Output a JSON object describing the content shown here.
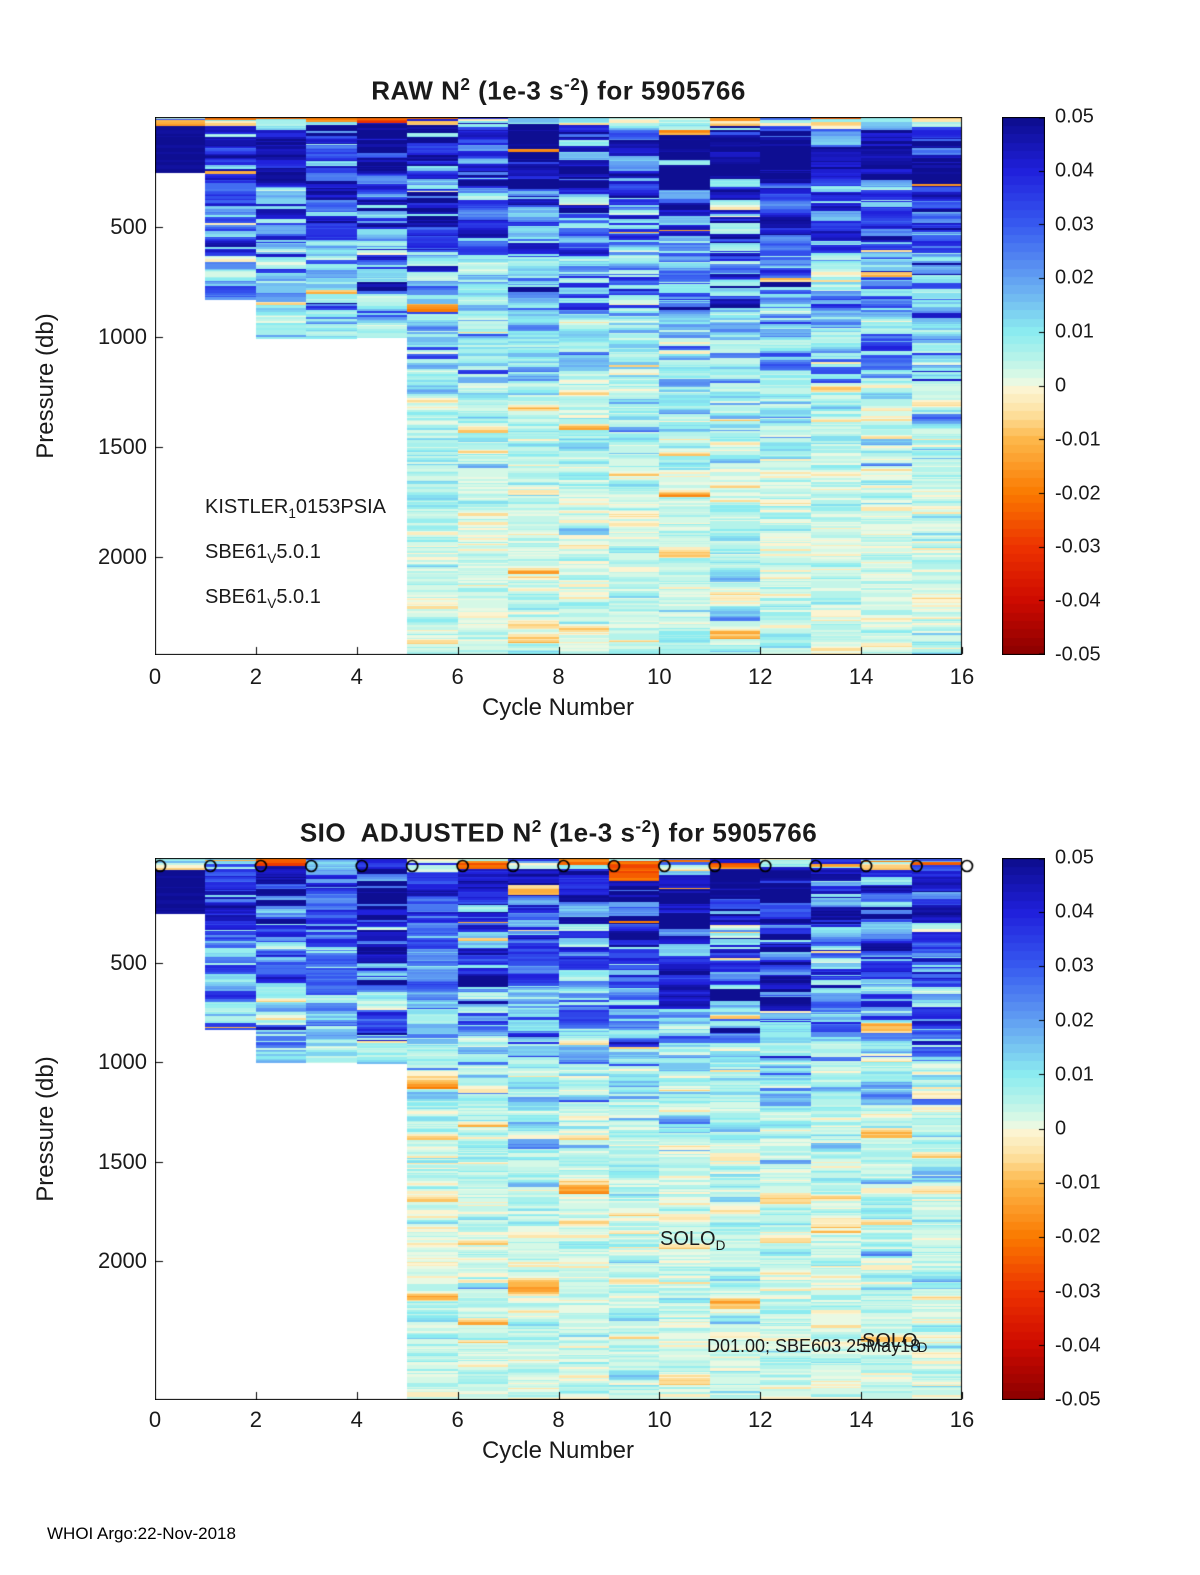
{
  "figure": {
    "footer": "WHOI Argo:22-Nov-2018"
  },
  "panels": [
    {
      "id": "raw",
      "title": {
        "t1": "RAW N",
        "sup1": "2",
        "t2": " (1e-3 s",
        "sup2": "-2",
        "t3": ") for 5905766"
      },
      "xlabel": "Cycle Number",
      "ylabel": "Pressure (db)",
      "xtick_labels": [
        "0",
        "2",
        "4",
        "6",
        "8",
        "10",
        "12",
        "14",
        "16"
      ],
      "ytick_labels": [
        "500",
        "1000",
        "1500",
        "2000"
      ],
      "colorbar_tick_labels": [
        "0.05",
        "0.04",
        "0.03",
        "0.02",
        "0.01",
        "0",
        "-0.01",
        "-0.02",
        "-0.03",
        "-0.04",
        "-0.05"
      ],
      "annotations": [
        {
          "t": "KISTLER",
          "sub": "1",
          "t2": "0153PSIA"
        },
        {
          "t": "SBE61",
          "sub": "V",
          "t2": "5.0.1"
        },
        {
          "t": "SBE61",
          "sub": "V",
          "t2": "5.0.1"
        }
      ]
    },
    {
      "id": "sio-adjusted",
      "title": {
        "t1": "SIO  ADJUSTED N",
        "sup1": "2",
        "t2": " (1e-3 s",
        "sup2": "-2",
        "t3": ") for 5905766"
      },
      "xlabel": "Cycle Number",
      "ylabel": "Pressure (db)",
      "xtick_labels": [
        "0",
        "2",
        "4",
        "6",
        "8",
        "10",
        "12",
        "14",
        "16"
      ],
      "ytick_labels": [
        "500",
        "1000",
        "1500",
        "2000"
      ],
      "colorbar_tick_labels": [
        "0.05",
        "0.04",
        "0.03",
        "0.02",
        "0.01",
        "0",
        "-0.01",
        "-0.02",
        "-0.03",
        "-0.04",
        "-0.05"
      ],
      "annotations": [
        {
          "t": "SOLO",
          "sub": "D"
        },
        {
          "t": "D01.00; SBE603 25May18"
        },
        {
          "t": "SOLO",
          "sub": "D"
        }
      ]
    }
  ],
  "chart_data": [
    {
      "type": "heatmap",
      "title": "RAW N^2 (1e-3 s^-2) for 5905766",
      "xlabel": "Cycle Number",
      "ylabel": "Pressure (db)",
      "float_id": "5905766",
      "value_units": "1e-3 s^-2",
      "xlim": [
        0,
        16
      ],
      "xticks": [
        0,
        2,
        4,
        6,
        8,
        10,
        12,
        14,
        16
      ],
      "ylim_db": [
        0,
        2445
      ],
      "yticks_db": [
        500,
        1000,
        1500,
        2000
      ],
      "y_axis_reversed": true,
      "grid": false,
      "colorbar_range": [
        -0.05,
        0.05
      ],
      "colorbar_ticks": [
        0.05,
        0.04,
        0.03,
        0.02,
        0.01,
        0,
        -0.01,
        -0.02,
        -0.03,
        -0.04,
        -0.05
      ],
      "colorbar_position": "right",
      "n_cycle_columns": 16,
      "cycle_max_pressure_db": [
        250,
        830,
        1000,
        1005,
        1000,
        2445,
        2445,
        2445,
        2445,
        2445,
        2445,
        2445,
        2445,
        2445,
        2445,
        2445
      ],
      "surface_markers": null,
      "seed": 20181122,
      "solid_navy_cap": {
        "column": 0,
        "from_db": 35,
        "to_db": 250,
        "value": 0.05
      },
      "depth_value_bands": [
        {
          "max_db": 6,
          "choices": [
            [
              0.45,
              -0.03,
              -0.001
            ],
            [
              0.3,
              -0.001,
              0.006
            ],
            [
              0.25,
              0.005,
              0.045
            ]
          ]
        },
        {
          "max_db": 28,
          "choices": [
            [
              0.55,
              0.003,
              0.012
            ],
            [
              0.2,
              -0.012,
              -0.001
            ],
            [
              0.25,
              0.03,
              0.05
            ]
          ]
        },
        {
          "max_db": 300,
          "choices": [
            [
              0.68,
              0.04,
              0.055
            ],
            [
              0.2,
              0.02,
              0.04
            ],
            [
              0.1,
              0.006,
              0.02
            ],
            [
              0.02,
              -0.02,
              -0.001
            ]
          ]
        },
        {
          "max_db": 600,
          "choices": [
            [
              0.45,
              0.033,
              0.05
            ],
            [
              0.33,
              0.015,
              0.033
            ],
            [
              0.2,
              0.006,
              0.015
            ],
            [
              0.02,
              -0.015,
              -0.001
            ]
          ]
        },
        {
          "max_db": 900,
          "choices": [
            [
              0.22,
              0.028,
              0.05
            ],
            [
              0.36,
              0.012,
              0.028
            ],
            [
              0.4,
              0.005,
              0.012
            ],
            [
              0.02,
              -0.012,
              -0.001
            ]
          ]
        },
        {
          "max_db": 1200,
          "choices": [
            [
              0.1,
              0.02,
              0.04
            ],
            [
              0.3,
              0.009,
              0.02
            ],
            [
              0.58,
              0.003,
              0.009
            ],
            [
              0.02,
              -0.008,
              -0.001
            ]
          ]
        },
        {
          "max_db": 1600,
          "choices": [
            [
              0.05,
              0.012,
              0.022
            ],
            [
              0.25,
              0.006,
              0.012
            ],
            [
              0.67,
              0.0015,
              0.006
            ],
            [
              0.03,
              -0.006,
              -0.0005
            ]
          ]
        },
        {
          "max_db": 9999,
          "choices": [
            [
              0.03,
              0.008,
              0.014
            ],
            [
              0.2,
              0.004,
              0.008
            ],
            [
              0.72,
              0.0008,
              0.004
            ],
            [
              0.05,
              -0.005,
              -0.0005
            ]
          ]
        }
      ],
      "colormap_stops": [
        [
          -0.05,
          [
            139,
            0,
            0
          ]
        ],
        [
          -0.04,
          [
            205,
            10,
            0
          ]
        ],
        [
          -0.03,
          [
            237,
            50,
            0
          ]
        ],
        [
          -0.02,
          [
            250,
            122,
            0
          ]
        ],
        [
          -0.01,
          [
            253,
            183,
            74
          ]
        ],
        [
          -0.005,
          [
            253,
            225,
            160
          ]
        ],
        [
          0,
          [
            252,
            247,
            218
          ]
        ],
        [
          0.001,
          [
            228,
            250,
            230
          ]
        ],
        [
          0.003,
          [
            205,
            247,
            230
          ]
        ],
        [
          0.006,
          [
            175,
            242,
            235
          ]
        ],
        [
          0.01,
          [
            140,
            236,
            240
          ]
        ],
        [
          0.02,
          [
            98,
            160,
            242
          ]
        ],
        [
          0.03,
          [
            55,
            90,
            240
          ]
        ],
        [
          0.04,
          [
            32,
            32,
            220
          ]
        ],
        [
          0.05,
          [
            13,
            13,
            140
          ]
        ]
      ],
      "quantize_levels": 64
    },
    {
      "type": "heatmap",
      "title": "SIO ADJUSTED N^2 (1e-3 s^-2) for 5905766",
      "xlabel": "Cycle Number",
      "ylabel": "Pressure (db)",
      "float_id": "5905766",
      "value_units": "1e-3 s^-2",
      "xlim": [
        0,
        16
      ],
      "xticks": [
        0,
        2,
        4,
        6,
        8,
        10,
        12,
        14,
        16
      ],
      "ylim_db": [
        0,
        2700
      ],
      "yticks_db": [
        500,
        1000,
        1500,
        2000
      ],
      "y_axis_reversed": true,
      "grid": false,
      "colorbar_range": [
        -0.05,
        0.05
      ],
      "colorbar_ticks": [
        0.05,
        0.04,
        0.03,
        0.02,
        0.01,
        0,
        -0.01,
        -0.02,
        -0.03,
        -0.04,
        -0.05
      ],
      "colorbar_position": "right",
      "n_cycle_columns": 16,
      "cycle_max_pressure_db": [
        250,
        830,
        1000,
        1005,
        1000,
        2700,
        2700,
        2700,
        2700,
        2700,
        2700,
        2700,
        2700,
        2700,
        2700,
        2700
      ],
      "surface_markers": {
        "symbol": "o",
        "cycles": [
          0,
          1,
          2,
          3,
          4,
          5,
          6,
          7,
          8,
          9,
          10,
          11,
          12,
          13,
          14,
          15,
          16
        ],
        "pressure_db": 15
      },
      "seed": 59057662,
      "solid_navy_cap": {
        "column": 0,
        "from_db": 35,
        "to_db": 250,
        "value": 0.05
      },
      "depth_value_bands": [
        {
          "max_db": 6,
          "choices": [
            [
              0.45,
              -0.03,
              -0.001
            ],
            [
              0.3,
              -0.001,
              0.006
            ],
            [
              0.25,
              0.005,
              0.045
            ]
          ]
        },
        {
          "max_db": 28,
          "choices": [
            [
              0.55,
              0.003,
              0.012
            ],
            [
              0.2,
              -0.012,
              -0.001
            ],
            [
              0.25,
              0.03,
              0.05
            ]
          ]
        },
        {
          "max_db": 300,
          "choices": [
            [
              0.68,
              0.04,
              0.055
            ],
            [
              0.2,
              0.02,
              0.04
            ],
            [
              0.1,
              0.006,
              0.02
            ],
            [
              0.02,
              -0.02,
              -0.001
            ]
          ]
        },
        {
          "max_db": 600,
          "choices": [
            [
              0.45,
              0.033,
              0.05
            ],
            [
              0.33,
              0.015,
              0.033
            ],
            [
              0.2,
              0.006,
              0.015
            ],
            [
              0.02,
              -0.015,
              -0.001
            ]
          ]
        },
        {
          "max_db": 900,
          "choices": [
            [
              0.22,
              0.028,
              0.05
            ],
            [
              0.36,
              0.012,
              0.028
            ],
            [
              0.4,
              0.005,
              0.012
            ],
            [
              0.02,
              -0.012,
              -0.001
            ]
          ]
        },
        {
          "max_db": 1200,
          "choices": [
            [
              0.1,
              0.02,
              0.04
            ],
            [
              0.3,
              0.009,
              0.02
            ],
            [
              0.58,
              0.003,
              0.009
            ],
            [
              0.02,
              -0.008,
              -0.001
            ]
          ]
        },
        {
          "max_db": 1600,
          "choices": [
            [
              0.05,
              0.012,
              0.022
            ],
            [
              0.25,
              0.006,
              0.012
            ],
            [
              0.67,
              0.0015,
              0.006
            ],
            [
              0.03,
              -0.006,
              -0.0005
            ]
          ]
        },
        {
          "max_db": 9999,
          "choices": [
            [
              0.03,
              0.008,
              0.014
            ],
            [
              0.2,
              0.004,
              0.008
            ],
            [
              0.72,
              0.0008,
              0.004
            ],
            [
              0.05,
              -0.005,
              -0.0005
            ]
          ]
        }
      ],
      "colormap_stops": [
        [
          -0.05,
          [
            139,
            0,
            0
          ]
        ],
        [
          -0.04,
          [
            205,
            10,
            0
          ]
        ],
        [
          -0.03,
          [
            237,
            50,
            0
          ]
        ],
        [
          -0.02,
          [
            250,
            122,
            0
          ]
        ],
        [
          -0.01,
          [
            253,
            183,
            74
          ]
        ],
        [
          -0.005,
          [
            253,
            225,
            160
          ]
        ],
        [
          0,
          [
            252,
            247,
            218
          ]
        ],
        [
          0.001,
          [
            228,
            250,
            230
          ]
        ],
        [
          0.003,
          [
            205,
            247,
            230
          ]
        ],
        [
          0.006,
          [
            175,
            242,
            235
          ]
        ],
        [
          0.01,
          [
            140,
            236,
            240
          ]
        ],
        [
          0.02,
          [
            98,
            160,
            242
          ]
        ],
        [
          0.03,
          [
            55,
            90,
            240
          ]
        ],
        [
          0.04,
          [
            32,
            32,
            220
          ]
        ],
        [
          0.05,
          [
            13,
            13,
            140
          ]
        ]
      ],
      "quantize_levels": 64
    }
  ]
}
